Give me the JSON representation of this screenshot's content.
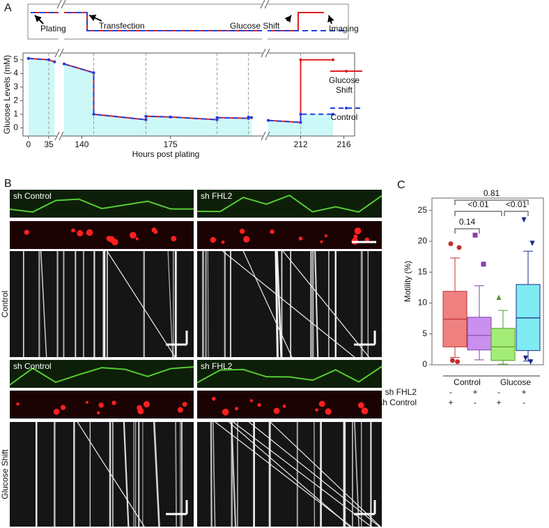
{
  "panel_a": {
    "panel_label": "A",
    "schematic_labels": [
      "Plating",
      "Transfection",
      "Glucose Shift",
      "Imaging"
    ]
  },
  "panel_b": {
    "panel_label": "B",
    "rows": [
      {
        "label": "Control",
        "columns": [
          "sh Control",
          "sh FHL2"
        ]
      },
      {
        "label": "Glucose Shift",
        "columns": [
          "sh Control",
          "sh FHL2"
        ]
      }
    ]
  },
  "chart_data": [
    {
      "type": "line",
      "ylabel": "Glucose Levels (mM)",
      "xlabel": "Hours post plating",
      "x": [
        0,
        35,
        45,
        133,
        144.7,
        144.7,
        165.3,
        165.3,
        175,
        193.4,
        193.4,
        205.8,
        205.8,
        207,
        209,
        212,
        212,
        215
      ],
      "xlim": [
        [
          -7,
          47
        ],
        [
          133,
          207
        ],
        [
          209,
          217
        ]
      ],
      "xticks": [
        0,
        35,
        140,
        175,
        212,
        216
      ],
      "ylim": [
        -0.6,
        5.5
      ],
      "yticks": [
        0,
        1,
        2,
        3,
        4,
        5
      ],
      "series": [
        {
          "name": "Glucose Shift",
          "color": "#e02020",
          "values": [
            5.1,
            5.0,
            4.85,
            4.7,
            4.05,
            1.0,
            0.6,
            0.85,
            0.8,
            0.6,
            0.75,
            0.7,
            0.8,
            0.75,
            0.55,
            0.4,
            5.0,
            5.0
          ]
        },
        {
          "name": "Control",
          "color": "#1f3fe0",
          "values": [
            5.1,
            5.0,
            4.85,
            4.7,
            4.05,
            1.0,
            0.6,
            0.85,
            0.8,
            0.6,
            0.75,
            0.7,
            0.8,
            0.75,
            0.55,
            0.4,
            1.0,
            1.0
          ]
        }
      ],
      "area_color": "#cdf8f8"
    },
    {
      "type": "box",
      "panel_label": "C",
      "ylabel": "Motility (%)",
      "ylim": [
        0,
        27
      ],
      "yticks": [
        0,
        5,
        10,
        15,
        20,
        25
      ],
      "boxes": [
        {
          "color": "#ee8080",
          "edge": "#c0302f",
          "marker": "circle",
          "min": 1.2,
          "q1": 2.9,
          "median": 7.4,
          "q3": 11.9,
          "max": 17.3,
          "outliers": [
            19.6,
            19.0,
            0.7,
            0.5
          ]
        },
        {
          "color": "#c990ef",
          "edge": "#8a3fa8",
          "marker": "square",
          "min": 0.8,
          "q1": 2.4,
          "median": 4.75,
          "q3": 7.7,
          "max": 12.8,
          "outliers": [
            21.0,
            16.3
          ]
        },
        {
          "color": "#a4ec78",
          "edge": "#4f9a2c",
          "marker": "triangle-up",
          "min": 0.1,
          "q1": 0.7,
          "median": 2.9,
          "q3": 5.9,
          "max": 8.8,
          "outliers": [
            10.9
          ]
        },
        {
          "color": "#7eeaf2",
          "edge": "#1a2a8a",
          "marker": "triangle-down",
          "min": 0.6,
          "q1": 2.3,
          "median": 7.6,
          "q3": 13.0,
          "max": 18.4,
          "outliers": [
            23.5,
            19.7,
            1.1,
            0.5
          ]
        }
      ],
      "group_labels": [
        "Control",
        "Glucose"
      ],
      "conditions": [
        {
          "label": "sh FHL2",
          "values": [
            "-",
            "+",
            "-",
            "+"
          ]
        },
        {
          "label": "sh Control",
          "values": [
            "+",
            "-",
            "+",
            "-"
          ]
        }
      ],
      "comparisons": [
        "0.14",
        "<0.01",
        "<0.01",
        "0.81"
      ]
    }
  ]
}
